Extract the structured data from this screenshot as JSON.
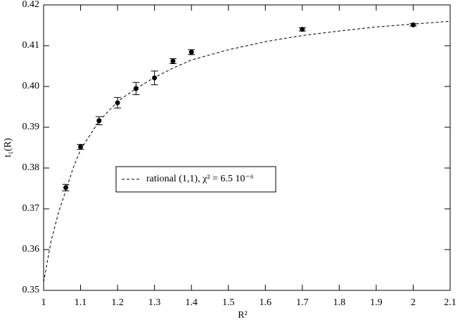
{
  "chart_data": {
    "type": "scatter",
    "x_label": "R²",
    "y_label": "t₁(R)",
    "xlim": [
      1,
      2.1
    ],
    "ylim": [
      0.35,
      0.42
    ],
    "xticks": [
      1,
      1.1,
      1.2,
      1.3,
      1.4,
      1.5,
      1.6,
      1.7,
      1.8,
      1.9,
      2,
      2.1
    ],
    "yticks": [
      0.35,
      0.36,
      0.37,
      0.38,
      0.39,
      {
        "value": 0.4,
        "label": "0.40"
      },
      0.41,
      0.42
    ],
    "series": [
      {
        "type": "scatter",
        "color": "#000000",
        "x": [
          1.06,
          1.1,
          1.15,
          1.2,
          1.25,
          1.3,
          1.35,
          1.4,
          1.7,
          2.0
        ],
        "values": [
          0.3752,
          0.3852,
          0.3916,
          0.396,
          0.3995,
          0.4021,
          0.4062,
          0.4084,
          0.414,
          0.4151
        ],
        "errors": [
          0.0008,
          0.0006,
          0.001,
          0.0013,
          0.0015,
          0.0017,
          0.0006,
          0.0006,
          0.0004,
          0.0003
        ]
      },
      {
        "type": "line",
        "name": "rational (1,1),  χ² = 6.5 10⁻⁶",
        "color": "#000000",
        "dashed": true,
        "x": [
          1.0,
          1.02,
          1.04,
          1.06,
          1.08,
          1.1,
          1.15,
          1.2,
          1.25,
          1.3,
          1.35,
          1.4,
          1.5,
          1.6,
          1.7,
          1.8,
          1.9,
          2.0,
          2.1
        ],
        "values": [
          0.352,
          0.362,
          0.369,
          0.3745,
          0.38,
          0.3845,
          0.3915,
          0.3963,
          0.3995,
          0.4022,
          0.4045,
          0.4065,
          0.409,
          0.411,
          0.4125,
          0.4136,
          0.4146,
          0.4153,
          0.416
        ]
      }
    ]
  }
}
